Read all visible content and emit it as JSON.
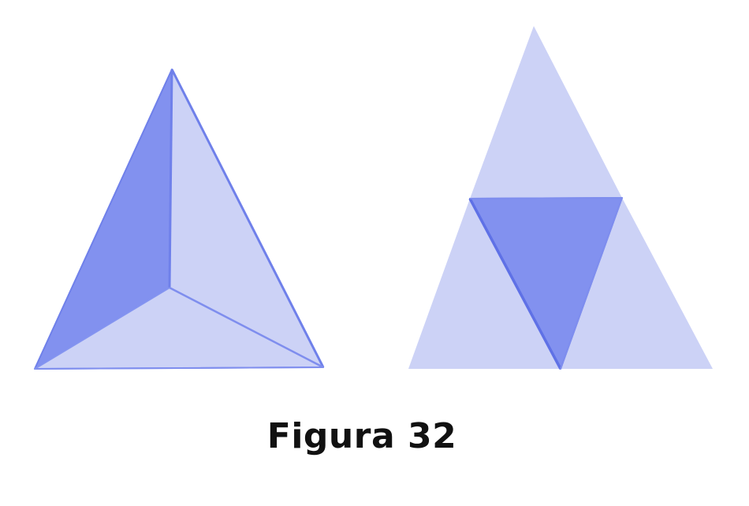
{
  "caption": "Figura 32",
  "colors": {
    "light_face": "#CCD2F6",
    "dark_face": "#8291EF",
    "edge": "#6F80EA",
    "background": "#FFFFFF",
    "caption_text": "#111111"
  },
  "figures": [
    {
      "name": "tetrahedron-top-view",
      "description_visible": false
    },
    {
      "name": "tetrahedron-net",
      "description_visible": false
    }
  ]
}
